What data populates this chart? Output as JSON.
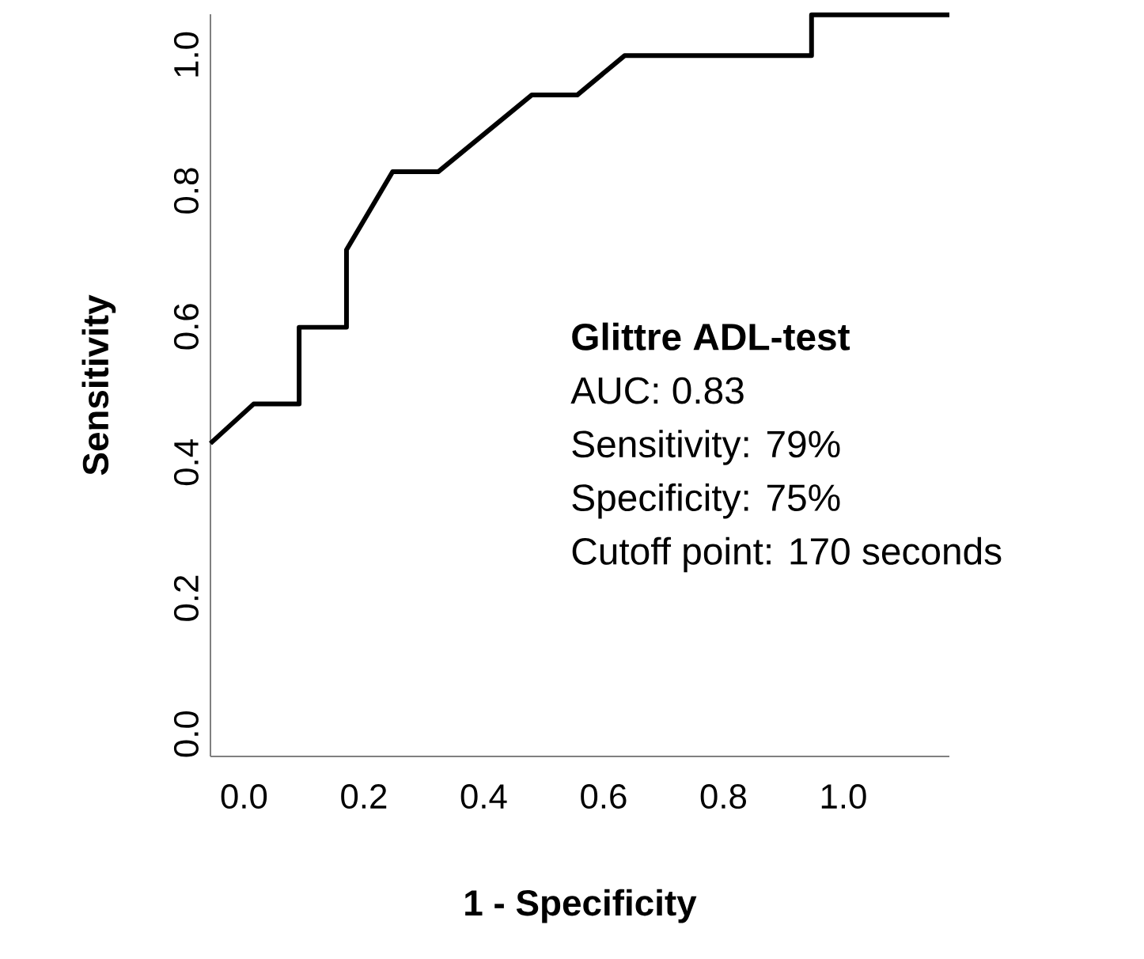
{
  "chart_data": {
    "type": "line",
    "xlabel": "1 - Specificity",
    "ylabel": "Sensitivity",
    "x": [
      -0.056,
      0.016,
      0.092,
      0.092,
      0.171,
      0.171,
      0.248,
      0.324,
      0.48,
      0.556,
      0.635,
      0.947,
      0.947,
      1.177
    ],
    "series": [
      {
        "color": "#000000",
        "values": [
          0.428,
          0.486,
          0.486,
          0.599,
          0.599,
          0.713,
          0.828,
          0.828,
          0.941,
          0.941,
          0.999,
          0.999,
          1.059,
          1.059
        ]
      }
    ],
    "xlim": [
      -0.056,
      1.177
    ],
    "ylim": [
      -0.033,
      1.06
    ],
    "xticks": [
      {
        "value": 0,
        "label": "0.0"
      },
      {
        "value": 0.2,
        "label": "0.2"
      },
      {
        "value": 0.4,
        "label": "0.4"
      },
      {
        "value": 0.6,
        "label": "0.6"
      },
      {
        "value": 0.8,
        "label": "0.8"
      },
      {
        "value": 1,
        "label": "1.0"
      }
    ],
    "yticks": [
      {
        "value": 0,
        "label": "0.0"
      },
      {
        "value": 0.2,
        "label": "0.2"
      },
      {
        "value": 0.4,
        "label": "0.4"
      },
      {
        "value": 0.6,
        "label": "0.6"
      },
      {
        "value": 0.8,
        "label": "0.8"
      },
      {
        "value": 1,
        "label": "1.0"
      }
    ],
    "marker": "none",
    "line_style": "solid",
    "annotations": [
      "**Glittre ADL-test**",
      "AUC: 0.83",
      "Sensitivity: 79%",
      "Specificity: 75%",
      "Cutoff point: 170 seconds"
    ]
  }
}
